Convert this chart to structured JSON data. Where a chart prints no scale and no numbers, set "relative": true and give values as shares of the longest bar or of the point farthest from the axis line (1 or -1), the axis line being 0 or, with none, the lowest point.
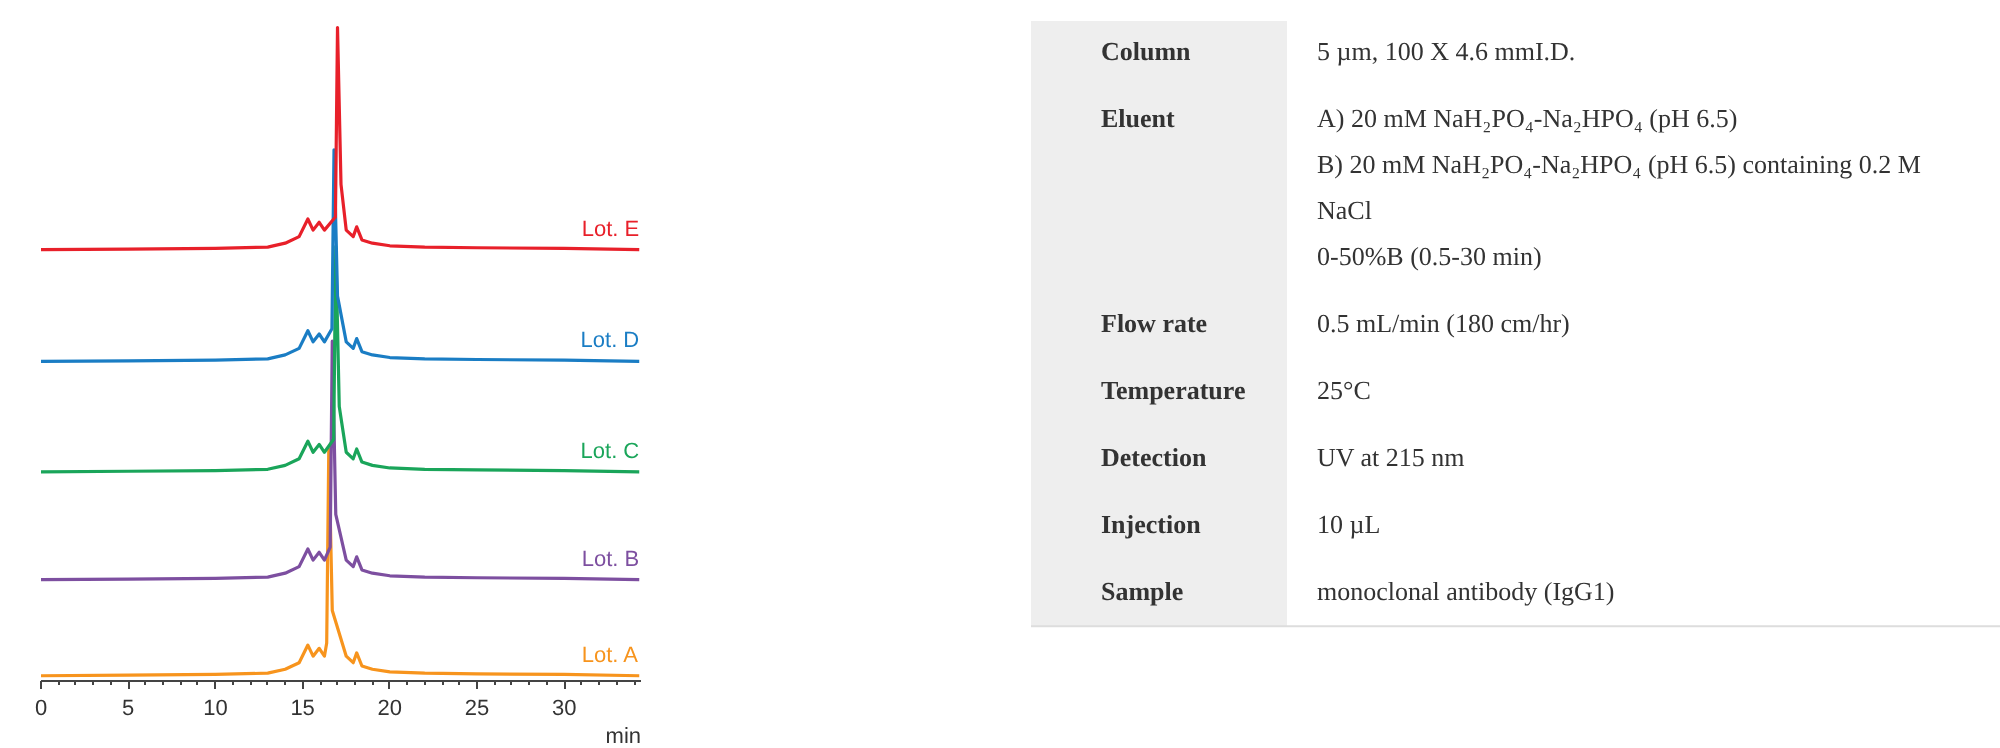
{
  "chart_data": [
    {
      "type": "line",
      "relative": true,
      "xlabel": "min",
      "xlim": [
        0,
        34.4
      ],
      "xticks": [
        0,
        5,
        10,
        15,
        20,
        25,
        30
      ],
      "grid": false,
      "marker": "none",
      "line_style": "solid",
      "tick_labels": "x",
      "series": [
        {
          "name": "Lot. A",
          "color": "#f7941d",
          "x": [
            0,
            5,
            10,
            13,
            14,
            14.8,
            15.3,
            15.6,
            15.95,
            16.25,
            16.38,
            16.5,
            16.7,
            17.5,
            17.9,
            18.1,
            18.4,
            19,
            20,
            22,
            25,
            30,
            34.3
          ],
          "values": [
            0.008,
            0.009,
            0.01,
            0.012,
            0.018,
            0.028,
            0.055,
            0.038,
            0.05,
            0.038,
            0.058,
            0.355,
            0.108,
            0.038,
            0.028,
            0.043,
            0.023,
            0.018,
            0.014,
            0.012,
            0.011,
            0.01,
            0.008
          ]
        },
        {
          "name": "Lot. B",
          "color": "#7d4fa0",
          "x": [
            0,
            5,
            10,
            13,
            14,
            14.8,
            15.3,
            15.6,
            15.95,
            16.25,
            16.58,
            16.7,
            16.9,
            17.5,
            17.9,
            18.1,
            18.4,
            19,
            20,
            22,
            25,
            30,
            34.3
          ],
          "values": [
            0.155,
            0.156,
            0.157,
            0.159,
            0.165,
            0.175,
            0.202,
            0.185,
            0.197,
            0.185,
            0.205,
            0.52,
            0.255,
            0.185,
            0.175,
            0.19,
            0.17,
            0.165,
            0.161,
            0.159,
            0.158,
            0.157,
            0.155
          ]
        },
        {
          "name": "Lot. C",
          "color": "#1aa55a",
          "x": [
            0,
            5,
            10,
            13,
            14,
            14.8,
            15.3,
            15.6,
            15.95,
            16.25,
            16.78,
            16.9,
            17.1,
            17.5,
            17.9,
            18.1,
            18.4,
            19,
            20,
            22,
            25,
            30,
            34.3
          ],
          "values": [
            0.32,
            0.321,
            0.322,
            0.324,
            0.33,
            0.34,
            0.367,
            0.35,
            0.362,
            0.35,
            0.37,
            0.665,
            0.42,
            0.35,
            0.34,
            0.355,
            0.335,
            0.33,
            0.326,
            0.324,
            0.323,
            0.322,
            0.32
          ]
        },
        {
          "name": "Lot. D",
          "color": "#1a7dc4",
          "x": [
            0,
            5,
            10,
            13,
            14,
            14.8,
            15.3,
            15.6,
            15.95,
            16.25,
            16.68,
            16.8,
            17.0,
            17.5,
            17.9,
            18.1,
            18.4,
            19,
            20,
            22,
            25,
            30,
            34.3
          ],
          "values": [
            0.489,
            0.49,
            0.491,
            0.493,
            0.499,
            0.509,
            0.536,
            0.519,
            0.531,
            0.519,
            0.539,
            0.813,
            0.589,
            0.519,
            0.509,
            0.524,
            0.504,
            0.499,
            0.495,
            0.493,
            0.492,
            0.491,
            0.489
          ]
        },
        {
          "name": "Lot. E",
          "color": "#e8202a",
          "x": [
            0,
            5,
            10,
            13,
            14,
            14.8,
            15.3,
            15.6,
            15.95,
            16.25,
            16.88,
            17.0,
            17.2,
            17.5,
            17.9,
            18.1,
            18.4,
            19,
            20,
            22,
            25,
            30,
            34.3
          ],
          "values": [
            0.66,
            0.661,
            0.662,
            0.664,
            0.67,
            0.68,
            0.707,
            0.69,
            0.702,
            0.69,
            0.71,
            1,
            0.76,
            0.69,
            0.68,
            0.695,
            0.675,
            0.67,
            0.666,
            0.664,
            0.663,
            0.662,
            0.66
          ]
        }
      ]
    },
    {
      "type": "other",
      "annotations": [
        "Column",
        "5 µm, 100 X 4.6 mmI.D.",
        "Eluent",
        "A)  20 mM NaH₂PO₄-Na₂HPO₄  (pH 6.5)\nB)  20 mM NaH₂PO₄-Na₂HPO₄  (pH 6.5) containing 0.2 M\n     NaCl\n0-50%B (0.5-30 min)",
        "Flow rate",
        "0.5 mL/min (180 cm/hr)",
        "Temperature",
        "25°C",
        "Detection",
        "UV at 215 nm",
        "Injection",
        "10 µL",
        "Sample",
        "monoclonal antibody (IgG1)"
      ]
    }
  ]
}
